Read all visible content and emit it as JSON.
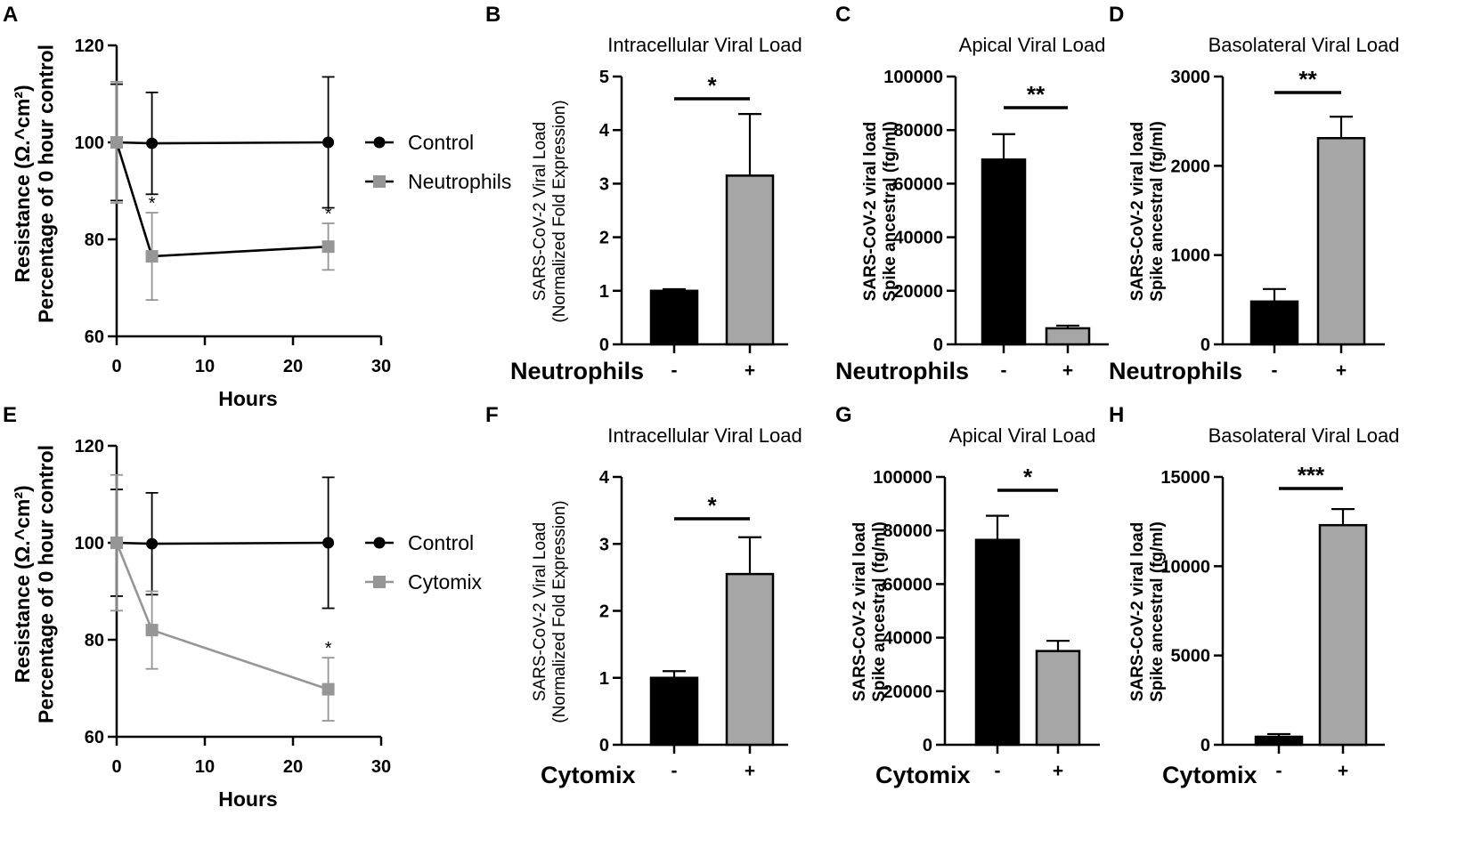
{
  "figure": {
    "colors": {
      "control": "#000000",
      "treated": "#969696",
      "axis": "#000000",
      "bar_dark": "#000000",
      "bar_light": "#a6a6a6"
    }
  },
  "chart_data": [
    {
      "panel": "A",
      "type": "line",
      "title": "",
      "xlabel": "Hours",
      "ylabel_lines": [
        "Resistance (Ω.^cm²)",
        "Percentage of 0 hour control"
      ],
      "xlim": [
        0,
        30
      ],
      "ylim": [
        60,
        120
      ],
      "xticks": [
        0,
        10,
        20,
        30
      ],
      "yticks": [
        60,
        80,
        100,
        120
      ],
      "legend": "right",
      "series": [
        {
          "name": "Control",
          "color": "#000000",
          "marker": "circle",
          "x": [
            0,
            4,
            24
          ],
          "y": [
            100,
            99.8,
            100
          ],
          "err": [
            12,
            10.5,
            13.5
          ],
          "sig": [
            "",
            "",
            ""
          ]
        },
        {
          "name": "Neutrophils",
          "color": "#000000",
          "marker_color": "#969696",
          "marker": "square",
          "x": [
            0,
            4,
            24
          ],
          "y": [
            100,
            76.5,
            78.5
          ],
          "err": [
            12.5,
            9,
            4.8
          ],
          "sig": [
            "",
            "*",
            "*"
          ]
        }
      ]
    },
    {
      "panel": "B",
      "type": "bar",
      "title": "Intracellular Viral Load",
      "ylabel_lines": [
        "SARS-CoV-2 Viral  Load",
        "(Normalized Fold Expression)"
      ],
      "xlabel": "Neutrophils",
      "categories": [
        "-",
        "+"
      ],
      "values": [
        1.0,
        3.15
      ],
      "errors": [
        0.03,
        1.15
      ],
      "ylim": [
        0,
        5
      ],
      "yticks": [
        0,
        1,
        2,
        3,
        4,
        5
      ],
      "significance": "*"
    },
    {
      "panel": "C",
      "type": "bar",
      "title": "Apical Viral Load",
      "ylabel_lines": [
        "SARS-CoV-2 viral load",
        "Spike ancestral (fg/ml)"
      ],
      "xlabel": "Neutrophils",
      "categories": [
        "-",
        "+"
      ],
      "values": [
        69000,
        6000
      ],
      "errors": [
        9500,
        1000
      ],
      "ylim": [
        0,
        100000
      ],
      "yticks": [
        0,
        20000,
        40000,
        60000,
        80000,
        100000
      ],
      "significance": "**"
    },
    {
      "panel": "D",
      "type": "bar",
      "title": "Basolateral Viral Load",
      "ylabel_lines": [
        "SARS-CoV-2 viral load",
        "Spike ancestral (fg/ml)"
      ],
      "xlabel": "Neutrophils",
      "categories": [
        "-",
        "+"
      ],
      "values": [
        480,
        2310
      ],
      "errors": [
        140,
        240
      ],
      "ylim": [
        0,
        3000
      ],
      "yticks": [
        0,
        1000,
        2000,
        3000
      ],
      "significance": "**"
    },
    {
      "panel": "E",
      "type": "line",
      "title": "",
      "xlabel": "Hours",
      "ylabel_lines": [
        "Resistance (Ω.^cm²)",
        "Percentage of 0 hour control"
      ],
      "xlim": [
        0,
        30
      ],
      "ylim": [
        60,
        120
      ],
      "xticks": [
        0,
        10,
        20,
        30
      ],
      "yticks": [
        60,
        80,
        100,
        120
      ],
      "legend": "right",
      "series": [
        {
          "name": "Control",
          "color": "#000000",
          "marker": "circle",
          "x": [
            0,
            4,
            24
          ],
          "y": [
            100,
            99.8,
            100
          ],
          "err": [
            11,
            10.5,
            13.5
          ],
          "sig": [
            "",
            "",
            ""
          ]
        },
        {
          "name": "Cytomix",
          "color": "#969696",
          "marker_color": "#969696",
          "marker": "square",
          "x": [
            0,
            4,
            24
          ],
          "y": [
            100,
            82,
            69.8
          ],
          "err": [
            14,
            8,
            6.5
          ],
          "sig": [
            "",
            "",
            "*"
          ]
        }
      ]
    },
    {
      "panel": "F",
      "type": "bar",
      "title": "Intracellular Viral Load",
      "ylabel_lines": [
        "SARS-CoV-2 Viral  Load",
        "(Normalized Fold  Expression)"
      ],
      "xlabel": "Cytomix",
      "categories": [
        "-",
        "+"
      ],
      "values": [
        1.0,
        2.55
      ],
      "errors": [
        0.1,
        0.55
      ],
      "ylim": [
        0,
        4
      ],
      "yticks": [
        0,
        1,
        2,
        3,
        4
      ],
      "significance": "*"
    },
    {
      "panel": "G",
      "type": "bar",
      "title": "Apical Viral Load",
      "ylabel_lines": [
        "SARS-CoV-2 viral load",
        "Spike ancestral (fg/ml)"
      ],
      "xlabel": "Cytomix",
      "categories": [
        "-",
        "+"
      ],
      "values": [
        76500,
        35000
      ],
      "errors": [
        9000,
        3800
      ],
      "ylim": [
        0,
        100000
      ],
      "yticks": [
        0,
        20000,
        40000,
        60000,
        80000,
        100000
      ],
      "significance": "*"
    },
    {
      "panel": "H",
      "type": "bar",
      "title": "Basolateral Viral Load",
      "ylabel_lines": [
        "SARS-CoV-2 viral load",
        "Spike ancestral (fg/ml)"
      ],
      "xlabel": "Cytomix",
      "categories": [
        "-",
        "+"
      ],
      "values": [
        450,
        12300
      ],
      "errors": [
        150,
        900
      ],
      "ylim": [
        0,
        15000
      ],
      "yticks": [
        0,
        5000,
        10000,
        15000
      ],
      "significance": "***"
    }
  ]
}
